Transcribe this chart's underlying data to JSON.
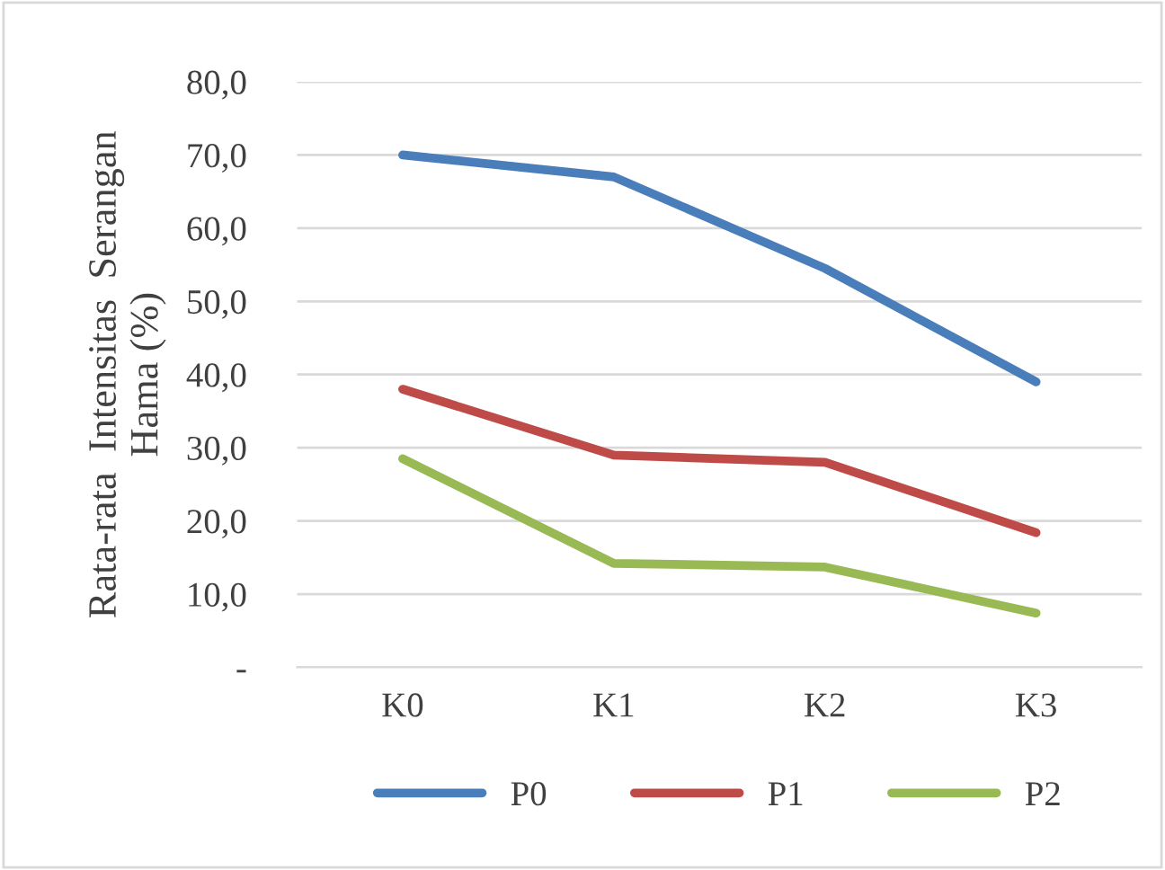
{
  "chart_data": {
    "type": "line",
    "ylabel": "Rata-rata  Intensitas  Serangan\nHama (%)",
    "categories": [
      "K0",
      "K1",
      "K2",
      "K3"
    ],
    "series": [
      {
        "name": "P0",
        "color": "#4a7ebb",
        "values": [
          70.0,
          67.0,
          54.5,
          39.0
        ]
      },
      {
        "name": "P1",
        "color": "#be4b48",
        "values": [
          38.0,
          29.0,
          28.0,
          18.4
        ]
      },
      {
        "name": "P2",
        "color": "#98b954",
        "values": [
          28.5,
          14.2,
          13.7,
          7.4
        ]
      }
    ],
    "ylim": [
      0,
      80
    ],
    "yticks": [
      {
        "value": 0,
        "label": "-"
      },
      {
        "value": 10,
        "label": "10,0"
      },
      {
        "value": 20,
        "label": "20,0"
      },
      {
        "value": 30,
        "label": "30,0"
      },
      {
        "value": 40,
        "label": "40,0"
      },
      {
        "value": 50,
        "label": "50,0"
      },
      {
        "value": 60,
        "label": "60,0"
      },
      {
        "value": 70,
        "label": "70,0"
      },
      {
        "value": 80,
        "label": "80,0"
      }
    ],
    "grid": "y",
    "legend": "bottom",
    "marker": "none",
    "line_style": "solid"
  }
}
